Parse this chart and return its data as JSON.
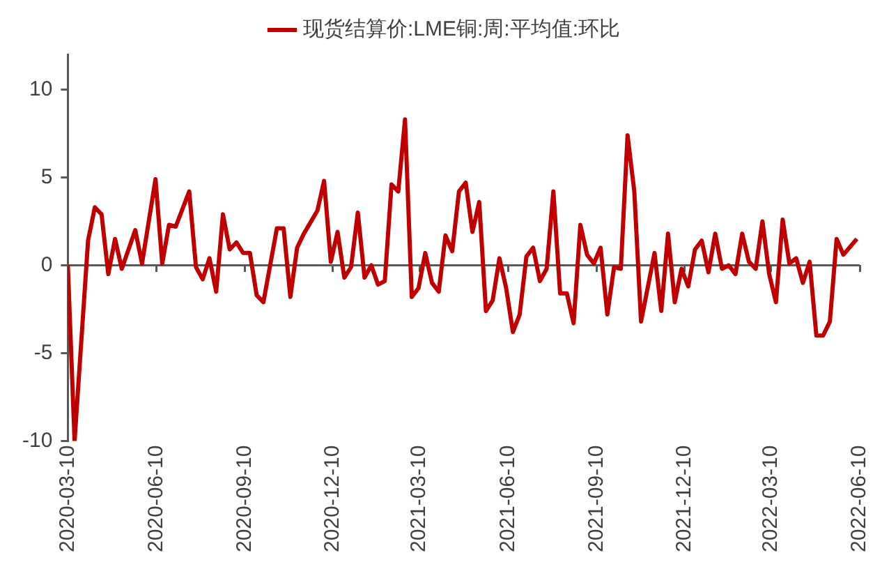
{
  "chart_data": {
    "type": "line",
    "legend": "top",
    "marker": "none",
    "line_style": "solid",
    "grid": false,
    "xlim": [
      "2020-03-10",
      "2022-06-10"
    ],
    "xticks": [
      "2020-03-10",
      "2020-06-10",
      "2020-09-10",
      "2020-12-10",
      "2021-03-10",
      "2021-06-10",
      "2021-09-10",
      "2021-12-10",
      "2022-03-10",
      "2022-06-10"
    ],
    "ylim": [
      -10,
      12
    ],
    "yticks": [
      -10,
      -5,
      0,
      5,
      10
    ],
    "ref_lines": [
      {
        "axis": "y",
        "value": 0,
        "color": "#595959",
        "line_style": "solid"
      }
    ],
    "series": [
      {
        "name": "现货结算价:LME铜:周:平均值:环比",
        "color": "#c00000",
        "x": [
          "2020-03-10",
          "2020-03-17",
          "2020-03-31",
          "2020-04-07",
          "2020-04-14",
          "2020-04-21",
          "2020-04-28",
          "2020-05-05",
          "2020-05-19",
          "2020-05-26",
          "2020-06-09",
          "2020-06-16",
          "2020-06-23",
          "2020-06-30",
          "2020-07-14",
          "2020-07-21",
          "2020-07-28",
          "2020-08-04",
          "2020-08-11",
          "2020-08-18",
          "2020-08-25",
          "2020-09-01",
          "2020-09-08",
          "2020-09-15",
          "2020-09-22",
          "2020-09-29",
          "2020-10-13",
          "2020-10-20",
          "2020-10-27",
          "2020-11-03",
          "2020-11-10",
          "2020-11-24",
          "2020-12-01",
          "2020-12-08",
          "2020-12-15",
          "2020-12-22",
          "2020-12-29",
          "2021-01-05",
          "2021-01-12",
          "2021-01-19",
          "2021-01-26",
          "2021-02-02",
          "2021-02-09",
          "2021-02-16",
          "2021-02-23",
          "2021-03-02",
          "2021-03-09",
          "2021-03-16",
          "2021-03-23",
          "2021-03-30",
          "2021-04-06",
          "2021-04-13",
          "2021-04-20",
          "2021-04-27",
          "2021-05-04",
          "2021-05-11",
          "2021-05-18",
          "2021-05-25",
          "2021-06-01",
          "2021-06-08",
          "2021-06-15",
          "2021-06-22",
          "2021-06-29",
          "2021-07-06",
          "2021-07-13",
          "2021-07-20",
          "2021-07-27",
          "2021-08-03",
          "2021-08-10",
          "2021-08-17",
          "2021-08-24",
          "2021-08-31",
          "2021-09-07",
          "2021-09-14",
          "2021-09-21",
          "2021-09-28",
          "2021-10-05",
          "2021-10-12",
          "2021-10-19",
          "2021-10-26",
          "2021-11-09",
          "2021-11-16",
          "2021-11-23",
          "2021-11-30",
          "2021-12-07",
          "2021-12-14",
          "2021-12-21",
          "2021-12-28",
          "2022-01-04",
          "2022-01-11",
          "2022-01-18",
          "2022-01-25",
          "2022-02-01",
          "2022-02-08",
          "2022-02-15",
          "2022-02-22",
          "2022-03-01",
          "2022-03-08",
          "2022-03-15",
          "2022-03-22",
          "2022-03-29",
          "2022-04-05",
          "2022-04-12",
          "2022-04-19",
          "2022-04-26",
          "2022-05-03",
          "2022-05-10",
          "2022-05-17",
          "2022-05-24",
          "2022-06-07"
        ],
        "values": [
          0,
          -10,
          1.4,
          3.3,
          2.9,
          -0.5,
          1.5,
          -0.2,
          2.0,
          0.1,
          4.9,
          0.1,
          2.3,
          2.2,
          4.2,
          -0.1,
          -0.8,
          0.4,
          -1.5,
          2.9,
          0.9,
          1.3,
          0.7,
          0.7,
          -1.7,
          -2.1,
          2.1,
          2.1,
          -1.8,
          1.0,
          1.8,
          3.1,
          4.8,
          0.2,
          1.9,
          -0.7,
          -0.1,
          3.0,
          -0.7,
          0,
          -1.1,
          -0.9,
          4.6,
          4.2,
          8.3,
          -1.8,
          -1.3,
          0.7,
          -1.0,
          -1.5,
          1.7,
          0.8,
          4.2,
          4.7,
          1.9,
          3.6,
          -2.6,
          -2.0,
          0.4,
          -1.3,
          -3.8,
          -2.8,
          0.5,
          1.0,
          -0.9,
          -0.2,
          4.2,
          -1.6,
          -1.6,
          -3.3,
          2.3,
          0.6,
          0.1,
          1.0,
          -2.8,
          -0.1,
          -0.2,
          7.4,
          4.2,
          -3.2,
          0.7,
          -2.6,
          1.8,
          -2.1,
          -0.2,
          -1.2,
          0.9,
          1.4,
          -0.4,
          1.8,
          -0.2,
          0,
          -0.5,
          1.8,
          0.2,
          -0.2,
          2.5,
          -0.5,
          -2.1,
          2.6,
          0.1,
          0.4,
          -1.0,
          0.2,
          -4.0,
          -4.0,
          -3.2,
          1.5,
          0.6,
          1.5
        ]
      }
    ]
  }
}
